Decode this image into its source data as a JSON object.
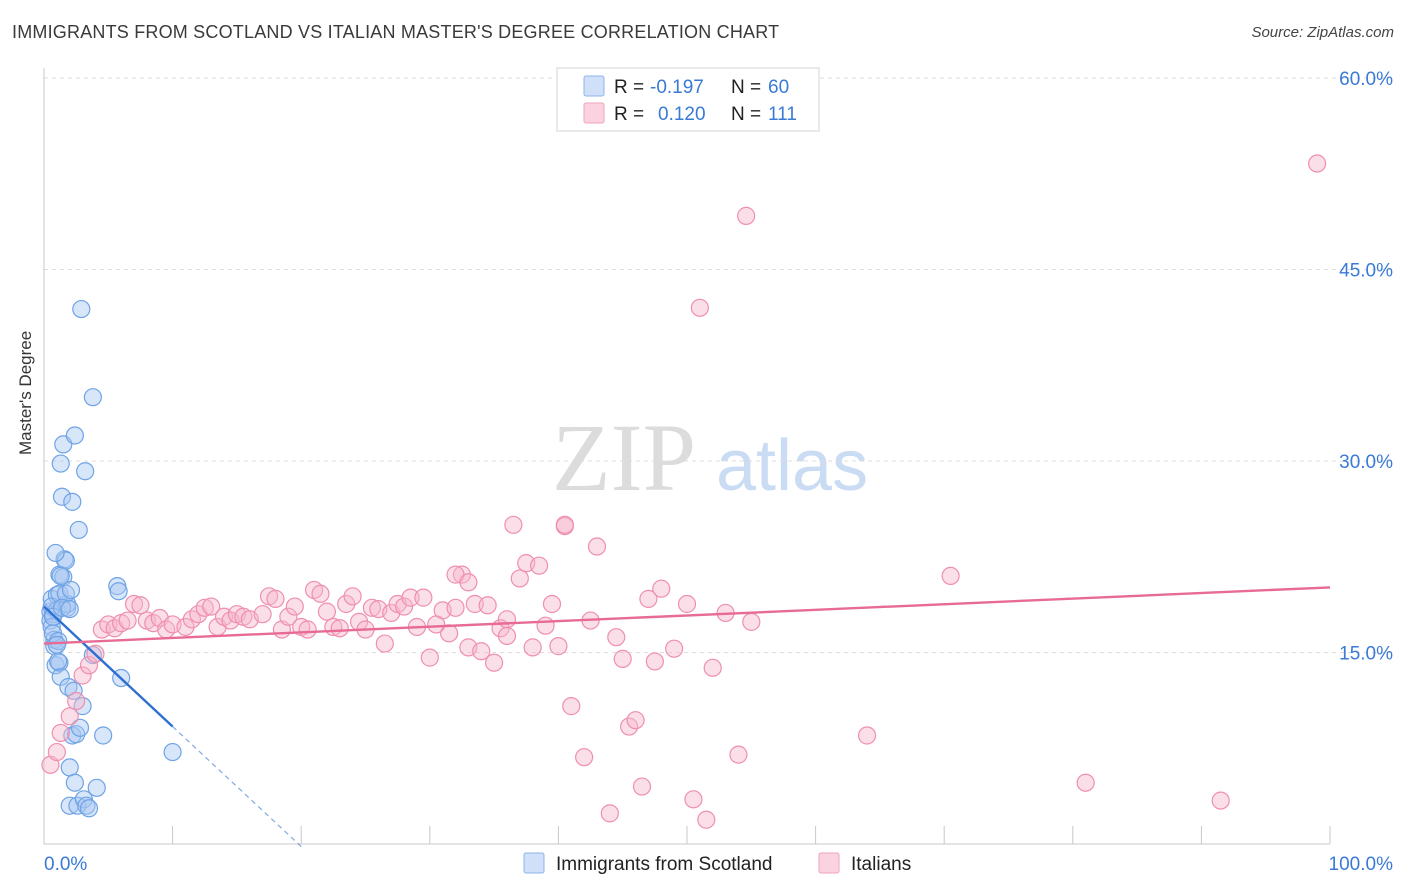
{
  "title": "IMMIGRANTS FROM SCOTLAND VS ITALIAN MASTER'S DEGREE CORRELATION CHART",
  "source": "Source: ZipAtlas.com",
  "watermark": {
    "zip": "ZIP",
    "atlas": "atlas"
  },
  "legend_box": {
    "rows": [
      {
        "r_label": "R =",
        "r_value": "-0.197",
        "n_label": "N =",
        "n_value": "60",
        "color": "#a9c8f2"
      },
      {
        "r_label": "R =",
        "r_value": "0.120",
        "n_label": "N =",
        "n_value": "111",
        "color": "#f6b7cb"
      }
    ]
  },
  "bottom_legend": [
    "Immigrants from Scotland",
    "Italians"
  ],
  "chart_data": {
    "type": "scatter",
    "title": "IMMIGRANTS FROM SCOTLAND VS ITALIAN MASTER'S DEGREE CORRELATION CHART",
    "xlabel": "",
    "ylabel": "Master's Degree",
    "xlim": [
      0,
      100
    ],
    "ylim": [
      0,
      60
    ],
    "x_tick_labels": [
      "0.0%",
      "100.0%"
    ],
    "y_ticks": [
      15,
      30,
      45,
      60
    ],
    "y_tick_labels": [
      "15.0%",
      "30.0%",
      "45.0%",
      "60.0%"
    ],
    "grid": "horizontal dashed",
    "legend": "top-center, bottom",
    "series": [
      {
        "name": "Immigrants from Scotland",
        "color": "#6fa3e6",
        "fill": "#a9c8f2",
        "line_color": "#2f6fd1",
        "trend": {
          "x0": 0,
          "y0": 18.6,
          "x1": 10,
          "y1": 9.2,
          "dash_to_x": 20
        },
        "points": [
          [
            0.5,
            18.2
          ],
          [
            0.5,
            17.5
          ],
          [
            0.6,
            19.2
          ],
          [
            0.7,
            18.0
          ],
          [
            0.6,
            17.0
          ],
          [
            0.8,
            16.0
          ],
          [
            0.8,
            15.5
          ],
          [
            0.9,
            14.0
          ],
          [
            0.7,
            16.5
          ],
          [
            1.0,
            19.5
          ],
          [
            1.0,
            18.3
          ],
          [
            1.1,
            15.9
          ],
          [
            1.2,
            14.2
          ],
          [
            1.3,
            13.1
          ],
          [
            1.2,
            21.1
          ],
          [
            1.3,
            29.8
          ],
          [
            1.4,
            27.2
          ],
          [
            1.5,
            31.3
          ],
          [
            1.6,
            22.3
          ],
          [
            1.7,
            22.2
          ],
          [
            1.8,
            18.5
          ],
          [
            1.8,
            18.8
          ],
          [
            1.9,
            12.3
          ],
          [
            2.0,
            6.0
          ],
          [
            2.0,
            3.0
          ],
          [
            2.2,
            8.5
          ],
          [
            2.3,
            12.0
          ],
          [
            2.4,
            4.8
          ],
          [
            2.5,
            8.6
          ],
          [
            2.6,
            3.0
          ],
          [
            2.7,
            24.6
          ],
          [
            2.8,
            9.1
          ],
          [
            3.0,
            10.8
          ],
          [
            3.1,
            3.5
          ],
          [
            3.2,
            29.2
          ],
          [
            3.3,
            3.0
          ],
          [
            3.5,
            2.8
          ],
          [
            3.8,
            14.8
          ],
          [
            4.1,
            4.4
          ],
          [
            4.6,
            8.5
          ],
          [
            5.7,
            20.2
          ],
          [
            5.8,
            19.8
          ],
          [
            6.0,
            13.0
          ],
          [
            10.0,
            7.2
          ],
          [
            3.8,
            35.0
          ],
          [
            2.9,
            41.9
          ],
          [
            0.6,
            18.6
          ],
          [
            0.7,
            17.8
          ],
          [
            0.9,
            22.8
          ],
          [
            1.0,
            15.6
          ],
          [
            1.1,
            14.3
          ],
          [
            1.2,
            19.6
          ],
          [
            1.5,
            20.9
          ],
          [
            1.7,
            19.6
          ],
          [
            2.1,
            19.9
          ],
          [
            2.4,
            32.0
          ],
          [
            1.4,
            18.5
          ],
          [
            2.0,
            18.4
          ],
          [
            2.2,
            26.8
          ],
          [
            1.3,
            21.0
          ]
        ]
      },
      {
        "name": "Italians",
        "color": "#ef8fae",
        "fill": "#f6b7cb",
        "line_color": "#e76b94",
        "trend": {
          "x0": 0,
          "y0": 15.7,
          "x1": 100,
          "y1": 20.1
        },
        "points": [
          [
            0.5,
            6.2
          ],
          [
            1.0,
            7.2
          ],
          [
            1.3,
            8.7
          ],
          [
            2.0,
            10.0
          ],
          [
            2.5,
            11.2
          ],
          [
            3.0,
            13.2
          ],
          [
            3.5,
            14.0
          ],
          [
            4.0,
            14.9
          ],
          [
            4.5,
            16.8
          ],
          [
            5.0,
            17.2
          ],
          [
            5.5,
            16.9
          ],
          [
            6.0,
            17.3
          ],
          [
            6.5,
            17.5
          ],
          [
            7.0,
            18.8
          ],
          [
            7.5,
            18.7
          ],
          [
            8.0,
            17.5
          ],
          [
            8.5,
            17.3
          ],
          [
            9.0,
            17.7
          ],
          [
            9.5,
            16.8
          ],
          [
            10.0,
            17.2
          ],
          [
            11.0,
            17.0
          ],
          [
            11.5,
            17.6
          ],
          [
            12.0,
            18.0
          ],
          [
            12.5,
            18.5
          ],
          [
            13.0,
            18.6
          ],
          [
            13.5,
            17.0
          ],
          [
            14.0,
            17.8
          ],
          [
            14.5,
            17.5
          ],
          [
            15.0,
            18.0
          ],
          [
            15.5,
            17.8
          ],
          [
            16.0,
            17.6
          ],
          [
            17.0,
            18.0
          ],
          [
            17.5,
            19.4
          ],
          [
            18.0,
            19.2
          ],
          [
            18.5,
            16.8
          ],
          [
            19.0,
            17.8
          ],
          [
            19.5,
            18.6
          ],
          [
            20.0,
            17.0
          ],
          [
            20.5,
            16.8
          ],
          [
            21.0,
            19.9
          ],
          [
            21.5,
            19.6
          ],
          [
            22.0,
            18.2
          ],
          [
            22.5,
            17.0
          ],
          [
            23.0,
            16.9
          ],
          [
            23.5,
            18.8
          ],
          [
            24.0,
            19.4
          ],
          [
            24.5,
            17.4
          ],
          [
            25.0,
            16.8
          ],
          [
            25.5,
            18.5
          ],
          [
            26.0,
            18.4
          ],
          [
            26.5,
            15.7
          ],
          [
            27.0,
            18.1
          ],
          [
            27.5,
            18.8
          ],
          [
            28.0,
            18.6
          ],
          [
            28.5,
            19.3
          ],
          [
            29.0,
            17.0
          ],
          [
            29.5,
            19.3
          ],
          [
            30.0,
            14.6
          ],
          [
            31.0,
            18.3
          ],
          [
            31.5,
            16.5
          ],
          [
            32.0,
            18.5
          ],
          [
            32.5,
            21.1
          ],
          [
            33.0,
            15.4
          ],
          [
            33.5,
            18.8
          ],
          [
            34.0,
            15.1
          ],
          [
            34.5,
            18.7
          ],
          [
            35.0,
            14.2
          ],
          [
            35.5,
            16.9
          ],
          [
            36.0,
            17.6
          ],
          [
            37.0,
            20.8
          ],
          [
            37.5,
            22.0
          ],
          [
            38.0,
            15.4
          ],
          [
            38.5,
            21.8
          ],
          [
            39.0,
            17.1
          ],
          [
            39.5,
            18.8
          ],
          [
            40.0,
            15.5
          ],
          [
            40.5,
            24.9
          ],
          [
            41.0,
            10.8
          ],
          [
            42.0,
            6.8
          ],
          [
            42.5,
            17.5
          ],
          [
            43.0,
            23.3
          ],
          [
            44.0,
            2.4
          ],
          [
            44.5,
            16.2
          ],
          [
            45.0,
            14.5
          ],
          [
            45.5,
            9.2
          ],
          [
            46.0,
            9.7
          ],
          [
            46.5,
            4.5
          ],
          [
            47.0,
            19.2
          ],
          [
            47.5,
            14.3
          ],
          [
            48.0,
            20.0
          ],
          [
            49.0,
            15.3
          ],
          [
            50.0,
            18.8
          ],
          [
            50.5,
            3.5
          ],
          [
            51.0,
            42.0
          ],
          [
            51.5,
            1.9
          ],
          [
            52.0,
            13.8
          ],
          [
            53.0,
            18.1
          ],
          [
            54.0,
            7.0
          ],
          [
            55.0,
            17.4
          ],
          [
            54.6,
            49.2
          ],
          [
            32.0,
            21.1
          ],
          [
            36.5,
            25.0
          ],
          [
            40.5,
            25.0
          ],
          [
            64.0,
            8.5
          ],
          [
            70.5,
            21.0
          ],
          [
            81.0,
            4.8
          ],
          [
            91.5,
            3.4
          ],
          [
            99.0,
            53.3
          ],
          [
            36.0,
            16.3
          ],
          [
            33.0,
            20.5
          ],
          [
            30.5,
            17.2
          ]
        ]
      }
    ]
  }
}
